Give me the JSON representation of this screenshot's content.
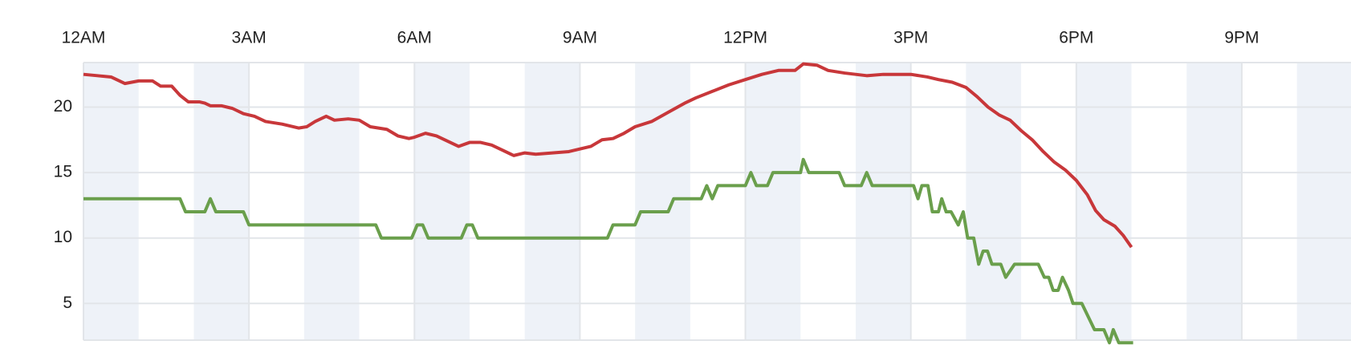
{
  "chart_data": {
    "type": "line",
    "xlim": [
      0,
      22.98
    ],
    "ylim": [
      2.2,
      23.4
    ],
    "xticks": [
      {
        "value": 0,
        "label": "12AM"
      },
      {
        "value": 3,
        "label": "3AM"
      },
      {
        "value": 6,
        "label": "6AM"
      },
      {
        "value": 9,
        "label": "9AM"
      },
      {
        "value": 12,
        "label": "12PM"
      },
      {
        "value": 15,
        "label": "3PM"
      },
      {
        "value": 18,
        "label": "6PM"
      },
      {
        "value": 21,
        "label": "9PM"
      }
    ],
    "yticks": [
      5,
      10,
      15,
      20
    ],
    "grid": true,
    "series": [
      {
        "color": "#c8373a",
        "x": [
          0,
          0.25,
          0.5,
          0.75,
          1.0,
          1.25,
          1.4,
          1.6,
          1.75,
          1.9,
          2.1,
          2.2,
          2.3,
          2.5,
          2.7,
          2.9,
          3.1,
          3.3,
          3.6,
          3.9,
          4.05,
          4.2,
          4.4,
          4.55,
          4.8,
          5.0,
          5.2,
          5.5,
          5.7,
          5.9,
          6.0,
          6.2,
          6.4,
          6.6,
          6.8,
          7.0,
          7.2,
          7.4,
          7.6,
          7.8,
          8.0,
          8.2,
          8.5,
          8.8,
          9.0,
          9.2,
          9.4,
          9.6,
          9.8,
          10.0,
          10.3,
          10.6,
          10.9,
          11.1,
          11.4,
          11.7,
          12.0,
          12.3,
          12.6,
          12.9,
          13.05,
          13.3,
          13.5,
          13.8,
          14.0,
          14.2,
          14.5,
          14.8,
          15.0,
          15.3,
          15.5,
          15.75,
          16.0,
          16.2,
          16.4,
          16.6,
          16.8,
          17.0,
          17.2,
          17.4,
          17.6,
          17.8,
          18.0,
          18.2,
          18.35,
          18.5,
          18.7,
          18.85,
          19.0
        ],
        "values": [
          22.5,
          22.4,
          22.3,
          21.8,
          22.0,
          22.0,
          21.6,
          21.6,
          20.9,
          20.4,
          20.4,
          20.3,
          20.1,
          20.1,
          19.9,
          19.5,
          19.3,
          18.9,
          18.7,
          18.4,
          18.5,
          18.9,
          19.3,
          19.0,
          19.1,
          19.0,
          18.5,
          18.3,
          17.8,
          17.6,
          17.7,
          18.0,
          17.8,
          17.4,
          17.0,
          17.3,
          17.3,
          17.1,
          16.7,
          16.3,
          16.5,
          16.4,
          16.5,
          16.6,
          16.8,
          17.0,
          17.5,
          17.6,
          18.0,
          18.5,
          18.9,
          19.6,
          20.3,
          20.7,
          21.2,
          21.7,
          22.1,
          22.5,
          22.8,
          22.8,
          23.3,
          23.2,
          22.8,
          22.6,
          22.5,
          22.4,
          22.5,
          22.5,
          22.5,
          22.3,
          22.1,
          21.9,
          21.5,
          20.8,
          20.0,
          19.4,
          19.0,
          18.2,
          17.5,
          16.6,
          15.8,
          15.2,
          14.4,
          13.3,
          12.1,
          11.4,
          10.9,
          10.2,
          9.3
        ]
      },
      {
        "color": "#6a9f4c",
        "x": [
          0,
          1.75,
          1.85,
          2.2,
          2.3,
          2.4,
          2.9,
          3.0,
          5.3,
          5.4,
          5.95,
          6.05,
          6.15,
          6.25,
          6.85,
          6.95,
          7.05,
          7.15,
          9.5,
          9.6,
          10.0,
          10.1,
          10.6,
          10.7,
          11.2,
          11.3,
          11.4,
          11.5,
          12.0,
          12.1,
          12.2,
          12.4,
          12.5,
          13.0,
          13.05,
          13.15,
          13.7,
          13.8,
          14.1,
          14.2,
          14.3,
          15.05,
          15.13,
          15.2,
          15.31,
          15.39,
          15.5,
          15.56,
          15.64,
          15.73,
          15.86,
          15.95,
          16.03,
          16.14,
          16.23,
          16.31,
          16.39,
          16.47,
          16.63,
          16.72,
          16.88,
          17.31,
          17.42,
          17.5,
          17.58,
          17.67,
          17.75,
          17.86,
          17.94,
          18.1,
          18.33,
          18.5,
          18.6,
          18.67,
          18.77,
          19.03
        ],
        "values": [
          13,
          13,
          12,
          12,
          13,
          12,
          12,
          11,
          11,
          10,
          10,
          11,
          11,
          10,
          10,
          11,
          11,
          10,
          10,
          11,
          11,
          12,
          12,
          13,
          13,
          14,
          13,
          14,
          14,
          15,
          14,
          14,
          15,
          15,
          16,
          15,
          15,
          14,
          14,
          15,
          14,
          14,
          13,
          14,
          14,
          12,
          12,
          13,
          12,
          12,
          11,
          12,
          10,
          10,
          8,
          9,
          9,
          8,
          8,
          7,
          8,
          8,
          7,
          7,
          6,
          6,
          7,
          6,
          5,
          5,
          3,
          3,
          2,
          3,
          2,
          2
        ]
      }
    ]
  }
}
